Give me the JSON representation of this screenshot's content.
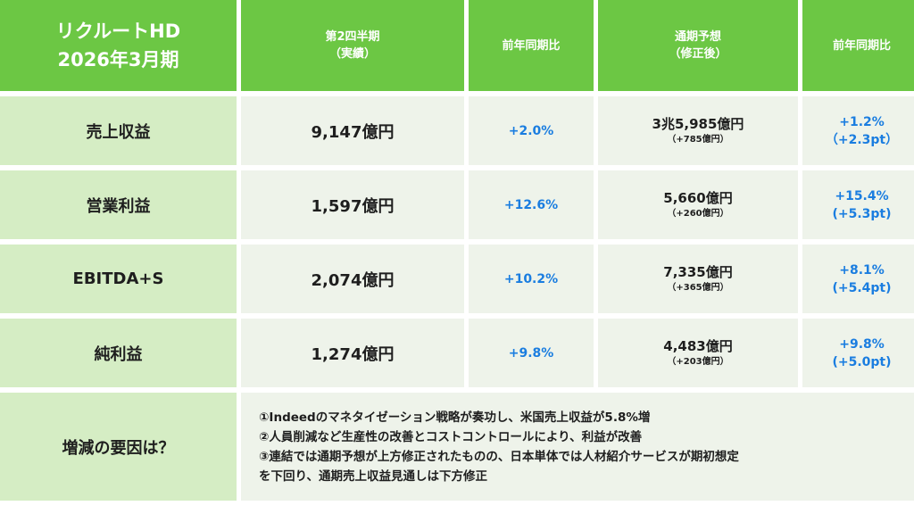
{
  "header": {
    "title_line1": "リクルートHD",
    "title_line2": "2026年3月期",
    "col_q2_line1": "第2四半期",
    "col_q2_line2": "（実績）",
    "col_yoy1": "前年同期比",
    "col_forecast_line1": "通期予想",
    "col_forecast_line2": "（修正後）",
    "col_yoy2": "前年同期比"
  },
  "rows": [
    {
      "label": "売上収益",
      "q2": "9,147億円",
      "yoy": "+2.0%",
      "forecast": "3兆5,985億円",
      "revision": "（+785億円）",
      "fy_yoy": "+1.2%",
      "fy_pt": "（+2.3pt）"
    },
    {
      "label": "営業利益",
      "q2": "1,597億円",
      "yoy": "+12.6%",
      "forecast": "5,660億円",
      "revision": "（+260億円）",
      "fy_yoy": "+15.4%",
      "fy_pt": "(+5.3pt)"
    },
    {
      "label": "EBITDA+S",
      "q2": "2,074億円",
      "yoy": "+10.2%",
      "forecast": "7,335億円",
      "revision": "（+365億円）",
      "fy_yoy": "+8.1%",
      "fy_pt": "(+5.4pt)"
    },
    {
      "label": "純利益",
      "q2": "1,274億円",
      "yoy": "+9.8%",
      "forecast": "4,483億円",
      "revision": "（+203億円）",
      "fy_yoy": "+9.8%",
      "fy_pt": "(+5.0pt)"
    }
  ],
  "notes": {
    "label": "増減の要因は？",
    "line1": "①Indeedのマネタイゼーション戦略が奏功し、米国売上収益が5.8%増",
    "line2": "②人員削減など生産性の改善とコストコントロールにより、利益が改善",
    "line3": "③連結では通期予想が上方修正されたものの、日本単体では人材紹介サービスが期初想定",
    "line4": "を下回り、通期売上収益見通しは下方修正"
  },
  "colors": {
    "header_green": "#6cc744",
    "label_green": "#d5edc4",
    "data_bg": "#eef3ea",
    "positive_blue": "#1a7de0"
  }
}
